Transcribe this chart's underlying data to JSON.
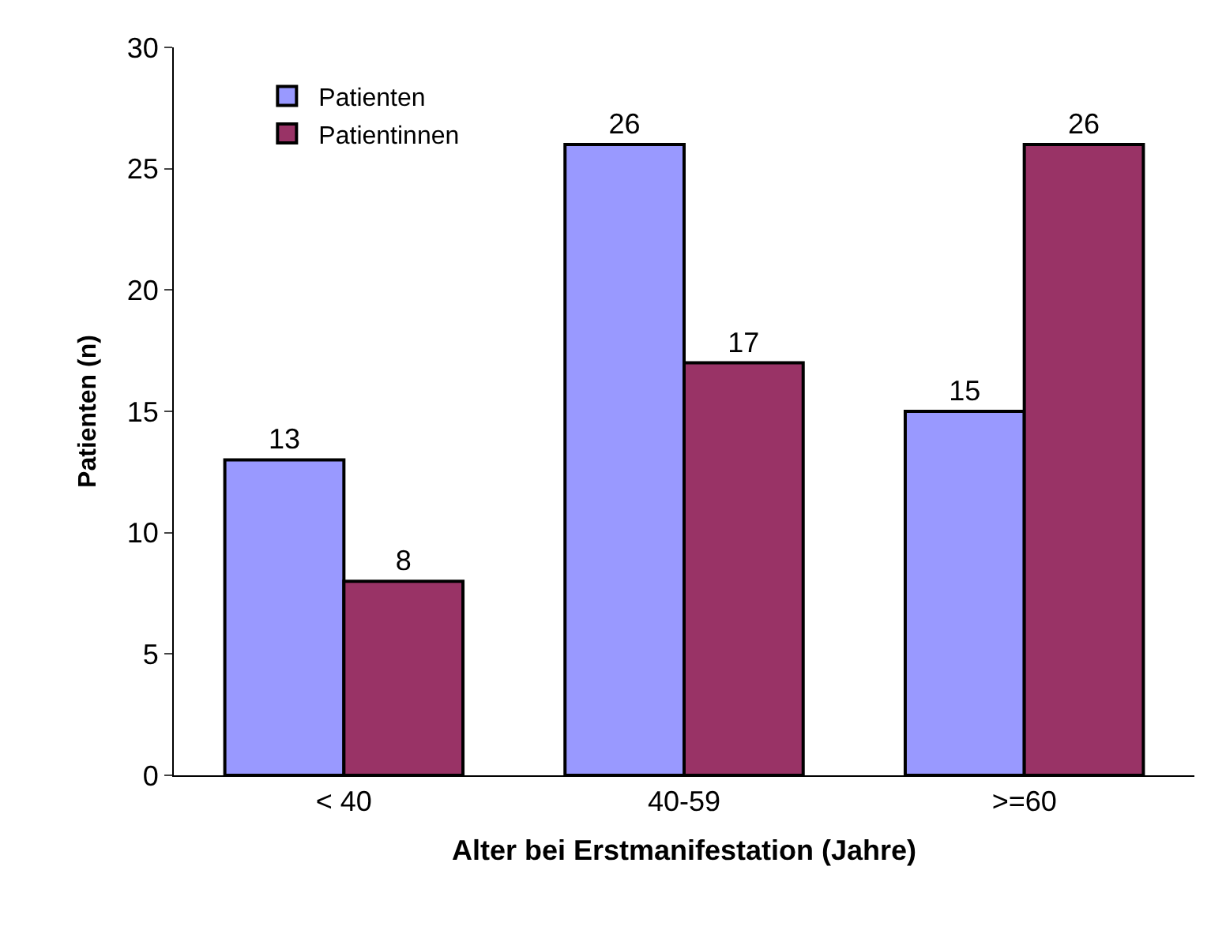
{
  "chart_data": {
    "type": "bar",
    "xlabel": "Alter bei Erstmanifestation (Jahre)",
    "ylabel": "Patienten (n)",
    "categories": [
      "< 40",
      "40-59",
      ">=60"
    ],
    "series": [
      {
        "name": "Patienten",
        "color": "#9999ff",
        "values": [
          13,
          26,
          15
        ]
      },
      {
        "name": "Patientinnen",
        "color": "#993366",
        "values": [
          8,
          17,
          26
        ]
      }
    ],
    "ylim": [
      0,
      30
    ],
    "yticks": [
      0,
      5,
      10,
      15,
      20,
      25,
      30
    ],
    "grid": false,
    "legend": "top left",
    "data_labels": true
  }
}
